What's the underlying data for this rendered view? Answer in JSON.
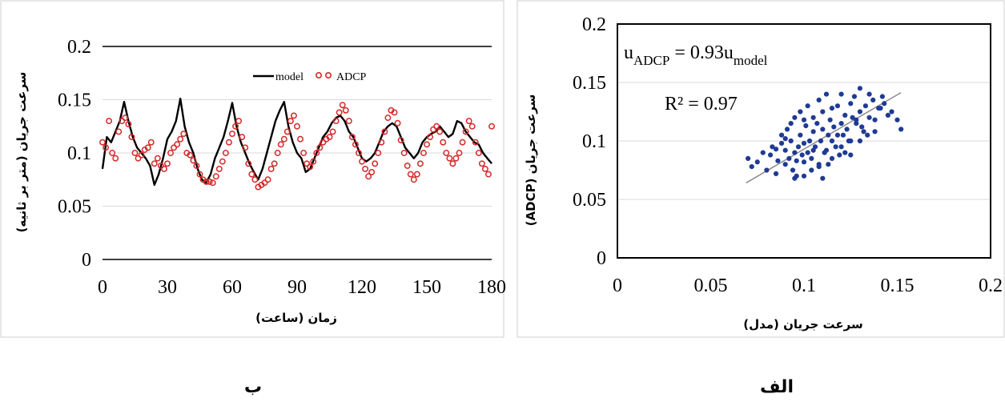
{
  "chart_data": [
    {
      "id": "left",
      "type": "line",
      "caption": "ب",
      "xlabel": "زمان (ساعت)",
      "ylabel": "سرعت جریان (متر بر ثانیه)",
      "xlim": [
        0,
        180
      ],
      "ylim": [
        0,
        0.2
      ],
      "xticks": [
        0,
        30,
        60,
        90,
        120,
        150,
        180
      ],
      "yticks": [
        0,
        0.05,
        0.1,
        0.15,
        0.2
      ],
      "xtick_labels": [
        "0",
        "30",
        "60",
        "90",
        "120",
        "150",
        "180"
      ],
      "ytick_labels": [
        "0",
        "0.05",
        "0.1",
        "0.15",
        "0.2"
      ],
      "grid": "horizontal",
      "legend": {
        "position": "top-right",
        "entries": [
          "model",
          "ADCP"
        ]
      },
      "series": [
        {
          "name": "model",
          "style": "line",
          "color": "#000000",
          "x": [
            0,
            2,
            4,
            6,
            8,
            10,
            12,
            14,
            16,
            18,
            20,
            22,
            24,
            26,
            28,
            30,
            32,
            34,
            36,
            38,
            40,
            42,
            44,
            46,
            48,
            50,
            52,
            54,
            56,
            58,
            60,
            62,
            64,
            66,
            68,
            70,
            72,
            74,
            76,
            78,
            80,
            82,
            84,
            86,
            88,
            90,
            92,
            94,
            96,
            98,
            100,
            102,
            104,
            106,
            108,
            110,
            112,
            114,
            116,
            118,
            120,
            122,
            124,
            126,
            128,
            130,
            132,
            134,
            136,
            138,
            140,
            142,
            144,
            146,
            148,
            150,
            152,
            154,
            156,
            158,
            160,
            162,
            164,
            166,
            168,
            170,
            172,
            174,
            176,
            178,
            180
          ],
          "y": [
            0.085,
            0.115,
            0.11,
            0.12,
            0.13,
            0.148,
            0.13,
            0.115,
            0.105,
            0.1,
            0.095,
            0.088,
            0.07,
            0.08,
            0.095,
            0.113,
            0.12,
            0.13,
            0.151,
            0.125,
            0.11,
            0.1,
            0.085,
            0.075,
            0.072,
            0.08,
            0.095,
            0.105,
            0.115,
            0.13,
            0.147,
            0.125,
            0.11,
            0.1,
            0.09,
            0.082,
            0.075,
            0.085,
            0.1,
            0.115,
            0.13,
            0.14,
            0.148,
            0.125,
            0.11,
            0.1,
            0.095,
            0.082,
            0.085,
            0.095,
            0.105,
            0.115,
            0.12,
            0.128,
            0.133,
            0.135,
            0.13,
            0.12,
            0.115,
            0.105,
            0.095,
            0.092,
            0.095,
            0.1,
            0.11,
            0.12,
            0.125,
            0.128,
            0.125,
            0.115,
            0.105,
            0.1,
            0.095,
            0.1,
            0.11,
            0.115,
            0.118,
            0.12,
            0.125,
            0.12,
            0.115,
            0.118,
            0.13,
            0.128,
            0.12,
            0.115,
            0.11,
            0.108,
            0.1,
            0.095,
            0.09
          ]
        },
        {
          "name": "ADCP",
          "style": "markers",
          "color": "#d62728",
          "x": [
            0,
            1.5,
            3,
            4.5,
            6,
            7.5,
            9,
            10.5,
            12,
            13.5,
            15,
            16.5,
            18,
            19.5,
            21,
            22.5,
            24,
            25.5,
            27,
            28.5,
            30,
            31.5,
            33,
            34.5,
            36,
            37.5,
            39,
            40.5,
            42,
            43.5,
            45,
            46.5,
            48,
            49.5,
            51,
            52.5,
            54,
            55.5,
            57,
            58.5,
            60,
            61.5,
            63,
            64.5,
            66,
            67.5,
            69,
            70.5,
            72,
            73.5,
            75,
            76.5,
            78,
            79.5,
            81,
            82.5,
            84,
            85.5,
            87,
            88.5,
            90,
            91.5,
            93,
            94.5,
            96,
            97.5,
            99,
            100.5,
            102,
            103.5,
            105,
            106.5,
            108,
            109.5,
            111,
            112.5,
            114,
            115.5,
            117,
            118.5,
            120,
            121.5,
            123,
            124.5,
            126,
            127.5,
            129,
            130.5,
            132,
            133.5,
            135,
            136.5,
            138,
            139.5,
            141,
            142.5,
            144,
            145.5,
            147,
            148.5,
            150,
            151.5,
            153,
            154.5,
            156,
            157.5,
            159,
            160.5,
            162,
            163.5,
            165,
            166.5,
            168,
            169.5,
            171,
            172.5,
            174,
            175.5,
            177,
            178.5,
            180
          ],
          "y": [
            0.11,
            0.105,
            0.13,
            0.1,
            0.095,
            0.12,
            0.13,
            0.133,
            0.127,
            0.115,
            0.1,
            0.095,
            0.098,
            0.103,
            0.105,
            0.11,
            0.09,
            0.095,
            0.088,
            0.085,
            0.09,
            0.1,
            0.105,
            0.108,
            0.113,
            0.118,
            0.1,
            0.098,
            0.093,
            0.088,
            0.08,
            0.075,
            0.073,
            0.073,
            0.072,
            0.078,
            0.085,
            0.092,
            0.1,
            0.11,
            0.118,
            0.125,
            0.13,
            0.115,
            0.105,
            0.09,
            0.08,
            0.075,
            0.068,
            0.07,
            0.072,
            0.075,
            0.085,
            0.09,
            0.1,
            0.108,
            0.113,
            0.12,
            0.13,
            0.135,
            0.125,
            0.113,
            0.1,
            0.09,
            0.087,
            0.092,
            0.1,
            0.105,
            0.11,
            0.113,
            0.115,
            0.12,
            0.13,
            0.138,
            0.145,
            0.14,
            0.13,
            0.115,
            0.108,
            0.1,
            0.092,
            0.085,
            0.078,
            0.082,
            0.09,
            0.1,
            0.11,
            0.12,
            0.133,
            0.14,
            0.138,
            0.128,
            0.112,
            0.1,
            0.088,
            0.08,
            0.075,
            0.08,
            0.09,
            0.1,
            0.108,
            0.115,
            0.122,
            0.125,
            0.12,
            0.11,
            0.1,
            0.095,
            0.09,
            0.095,
            0.1,
            0.11,
            0.12,
            0.13,
            0.125,
            0.11,
            0.1,
            0.09,
            0.085,
            0.08,
            0.125
          ]
        }
      ]
    },
    {
      "id": "right",
      "type": "scatter",
      "caption": "الف",
      "xlabel": "سرعت جریان (مدل)",
      "ylabel": "سرعت جریان (ADCP)",
      "xlim": [
        0,
        0.2
      ],
      "ylim": [
        0,
        0.2
      ],
      "xticks": [
        0,
        0.05,
        0.1,
        0.15,
        0.2
      ],
      "yticks": [
        0,
        0.05,
        0.1,
        0.15,
        0.2
      ],
      "xtick_labels": [
        "0",
        "0.05",
        "0.1",
        "0.15",
        "0.2"
      ],
      "ytick_labels": [
        "0",
        "0.05",
        "0.1",
        "0.15",
        "0.2"
      ],
      "grid": "horizontal",
      "equation": {
        "lhs": "u",
        "lhs_sub": "ADCP",
        "mid": " = 0.93u",
        "rhs_sub": "model"
      },
      "r_squared": "R² = 0.97",
      "trendline": {
        "slope": 0.93,
        "x_range": [
          0.069,
          0.152
        ]
      },
      "series": [
        {
          "name": "",
          "color": "#1f3a93",
          "x": [
            0.07,
            0.072,
            0.075,
            0.078,
            0.08,
            0.082,
            0.083,
            0.085,
            0.086,
            0.088,
            0.088,
            0.09,
            0.09,
            0.091,
            0.092,
            0.093,
            0.093,
            0.094,
            0.095,
            0.095,
            0.096,
            0.097,
            0.098,
            0.098,
            0.099,
            0.1,
            0.1,
            0.101,
            0.102,
            0.102,
            0.103,
            0.104,
            0.105,
            0.105,
            0.106,
            0.107,
            0.108,
            0.108,
            0.109,
            0.11,
            0.11,
            0.111,
            0.112,
            0.113,
            0.114,
            0.115,
            0.115,
            0.116,
            0.117,
            0.118,
            0.12,
            0.12,
            0.121,
            0.122,
            0.123,
            0.125,
            0.125,
            0.126,
            0.127,
            0.128,
            0.13,
            0.13,
            0.132,
            0.133,
            0.135,
            0.135,
            0.137,
            0.138,
            0.14,
            0.142,
            0.143,
            0.145,
            0.147,
            0.15,
            0.152,
            0.095,
            0.1,
            0.105,
            0.11,
            0.115,
            0.12,
            0.125,
            0.13,
            0.09,
            0.085,
            0.1,
            0.108,
            0.112,
            0.118,
            0.122,
            0.128,
            0.134,
            0.104,
            0.096,
            0.113,
            0.119,
            0.124,
            0.131,
            0.138,
            0.141
          ],
          "y": [
            0.085,
            0.078,
            0.082,
            0.09,
            0.075,
            0.088,
            0.095,
            0.072,
            0.083,
            0.098,
            0.105,
            0.08,
            0.092,
            0.11,
            0.085,
            0.1,
            0.115,
            0.075,
            0.09,
            0.12,
            0.083,
            0.095,
            0.105,
            0.125,
            0.088,
            0.07,
            0.098,
            0.113,
            0.09,
            0.13,
            0.1,
            0.085,
            0.108,
            0.12,
            0.095,
            0.115,
            0.078,
            0.135,
            0.1,
            0.11,
            0.125,
            0.09,
            0.14,
            0.105,
            0.118,
            0.1,
            0.128,
            0.112,
            0.095,
            0.13,
            0.115,
            0.14,
            0.105,
            0.122,
            0.11,
            0.132,
            0.1,
            0.12,
            0.138,
            0.115,
            0.125,
            0.145,
            0.108,
            0.13,
            0.12,
            0.14,
            0.135,
            0.118,
            0.128,
            0.138,
            0.132,
            0.122,
            0.125,
            0.118,
            0.11,
            0.068,
            0.082,
            0.092,
            0.068,
            0.085,
            0.095,
            0.088,
            0.1,
            0.102,
            0.093,
            0.118,
            0.08,
            0.092,
            0.105,
            0.09,
            0.118,
            0.105,
            0.075,
            0.07,
            0.08,
            0.088,
            0.1,
            0.112,
            0.108,
            0.128
          ]
        }
      ]
    }
  ]
}
